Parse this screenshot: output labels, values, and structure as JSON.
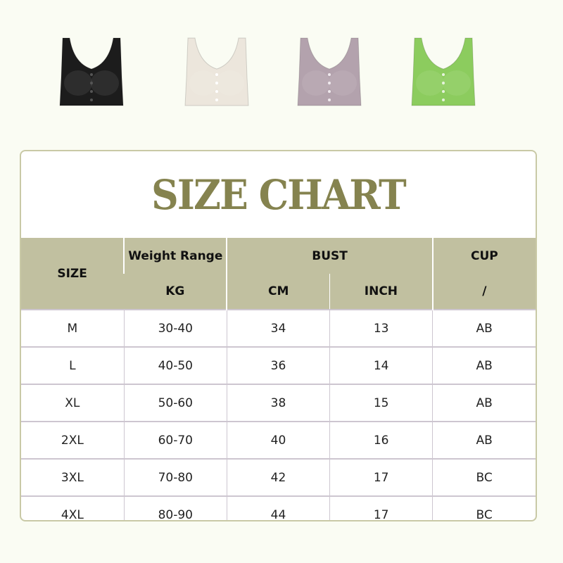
{
  "products": [
    {
      "name": "black",
      "color": "#1c1c1c",
      "button": "#555555"
    },
    {
      "name": "beige",
      "color": "#ece6dc",
      "button": "#ffffff"
    },
    {
      "name": "purple",
      "color": "#b3a2ad",
      "button": "#f0eaee"
    },
    {
      "name": "green",
      "color": "#8ccc5e",
      "button": "#e6f3dc"
    }
  ],
  "title": "SIZE CHART",
  "header": {
    "size": "SIZE",
    "weight": "Weight Range",
    "weight_unit": "KG",
    "bust": "BUST",
    "bust_cm": "CM",
    "bust_inch": "INCH",
    "cup": "CUP",
    "cup_unit": "/"
  },
  "rows": [
    [
      "M",
      "30-40",
      "34",
      "13",
      "AB"
    ],
    [
      "L",
      "40-50",
      "36",
      "14",
      "AB"
    ],
    [
      "XL",
      "50-60",
      "38",
      "15",
      "AB"
    ],
    [
      "2XL",
      "60-70",
      "40",
      "16",
      "AB"
    ],
    [
      "3XL",
      "70-80",
      "42",
      "17",
      "BC"
    ],
    [
      "4XL",
      "80-90",
      "44",
      "17",
      "BC"
    ]
  ],
  "colors": {
    "accent": "#85834f",
    "header_bg": "#c1c0a0",
    "background": "#fafcf3"
  }
}
